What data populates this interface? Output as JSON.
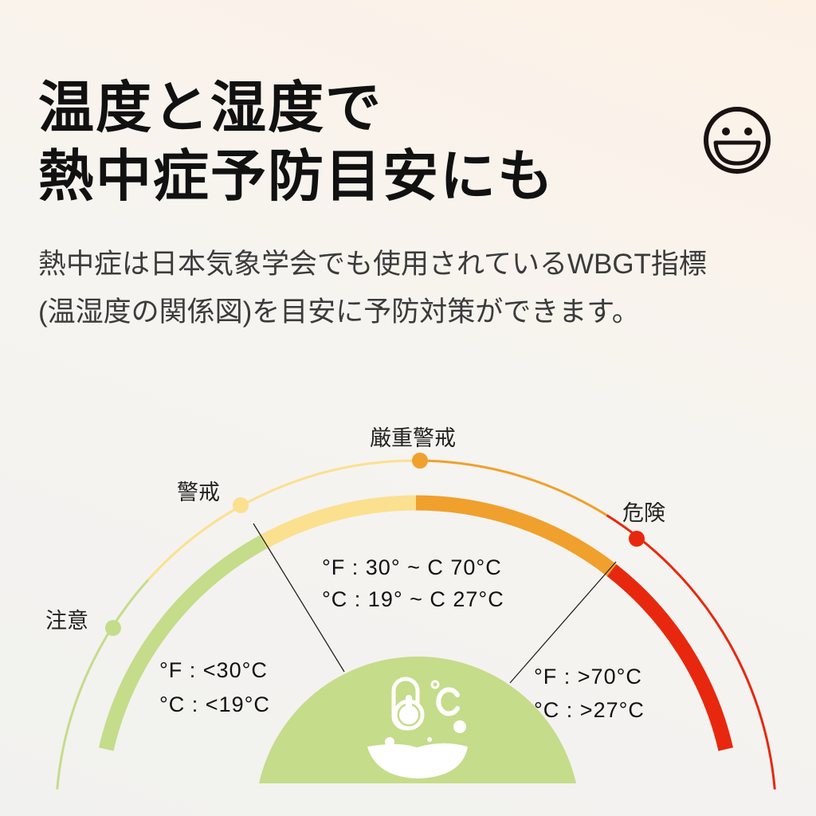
{
  "title": {
    "line1": "温度と湿度で",
    "line2": "熱中症予防目安にも"
  },
  "description": {
    "line1": "熱中症は日本気象学会でも使用されているWBGT指標",
    "line2": "(温湿度の関係図)を目安に予防対策ができます。"
  },
  "icons": {
    "top_right": "smiley-face-icon",
    "center": "thermometer-humidity-icon"
  },
  "zones": [
    {
      "label": "注意",
      "color": "#c5dc8a"
    },
    {
      "label": "警戒",
      "color": "#fbe08f"
    },
    {
      "label": "厳重警戒",
      "color": "#f0a02c"
    },
    {
      "label": "危険",
      "color": "#e8280e"
    }
  ],
  "ranges": {
    "low": {
      "f": "°F : <30°C",
      "c": "°C : <19°C"
    },
    "mid": {
      "f": "°F : 30° ~ C  70°C",
      "c": "°C : 19° ~ C  27°C"
    },
    "high": {
      "f": "°F : >70°C",
      "c": "°C : >27°C"
    }
  },
  "colors": {
    "center_fill": "#c5dc8a"
  }
}
